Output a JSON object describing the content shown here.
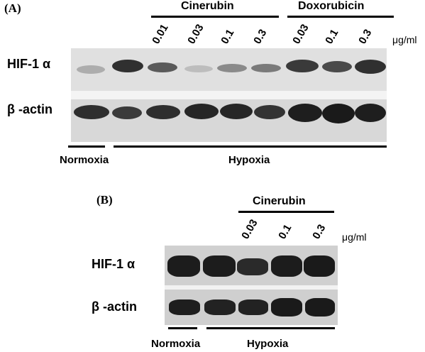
{
  "panelA": {
    "label": "(A)",
    "groups": [
      {
        "name": "Cinerubin",
        "concentrations": [
          "0.01",
          "0.03",
          "0.1",
          "0.3"
        ]
      },
      {
        "name": "Doxorubicin",
        "concentrations": [
          "0.03",
          "0.1",
          "0.3"
        ]
      }
    ],
    "unit": "μg/ml",
    "rows": [
      "HIF-1 α",
      "β -actin"
    ],
    "conditions": [
      "Normoxia",
      "Hypoxia"
    ]
  },
  "panelB": {
    "label": "(B)",
    "groups": [
      {
        "name": "Cinerubin",
        "concentrations": [
          "0.03",
          "0.1",
          "0.3"
        ]
      }
    ],
    "unit": "μg/ml",
    "rows": [
      "HIF-1 α",
      "β -actin"
    ],
    "conditions": [
      "Normoxia",
      "Hypoxia"
    ]
  }
}
